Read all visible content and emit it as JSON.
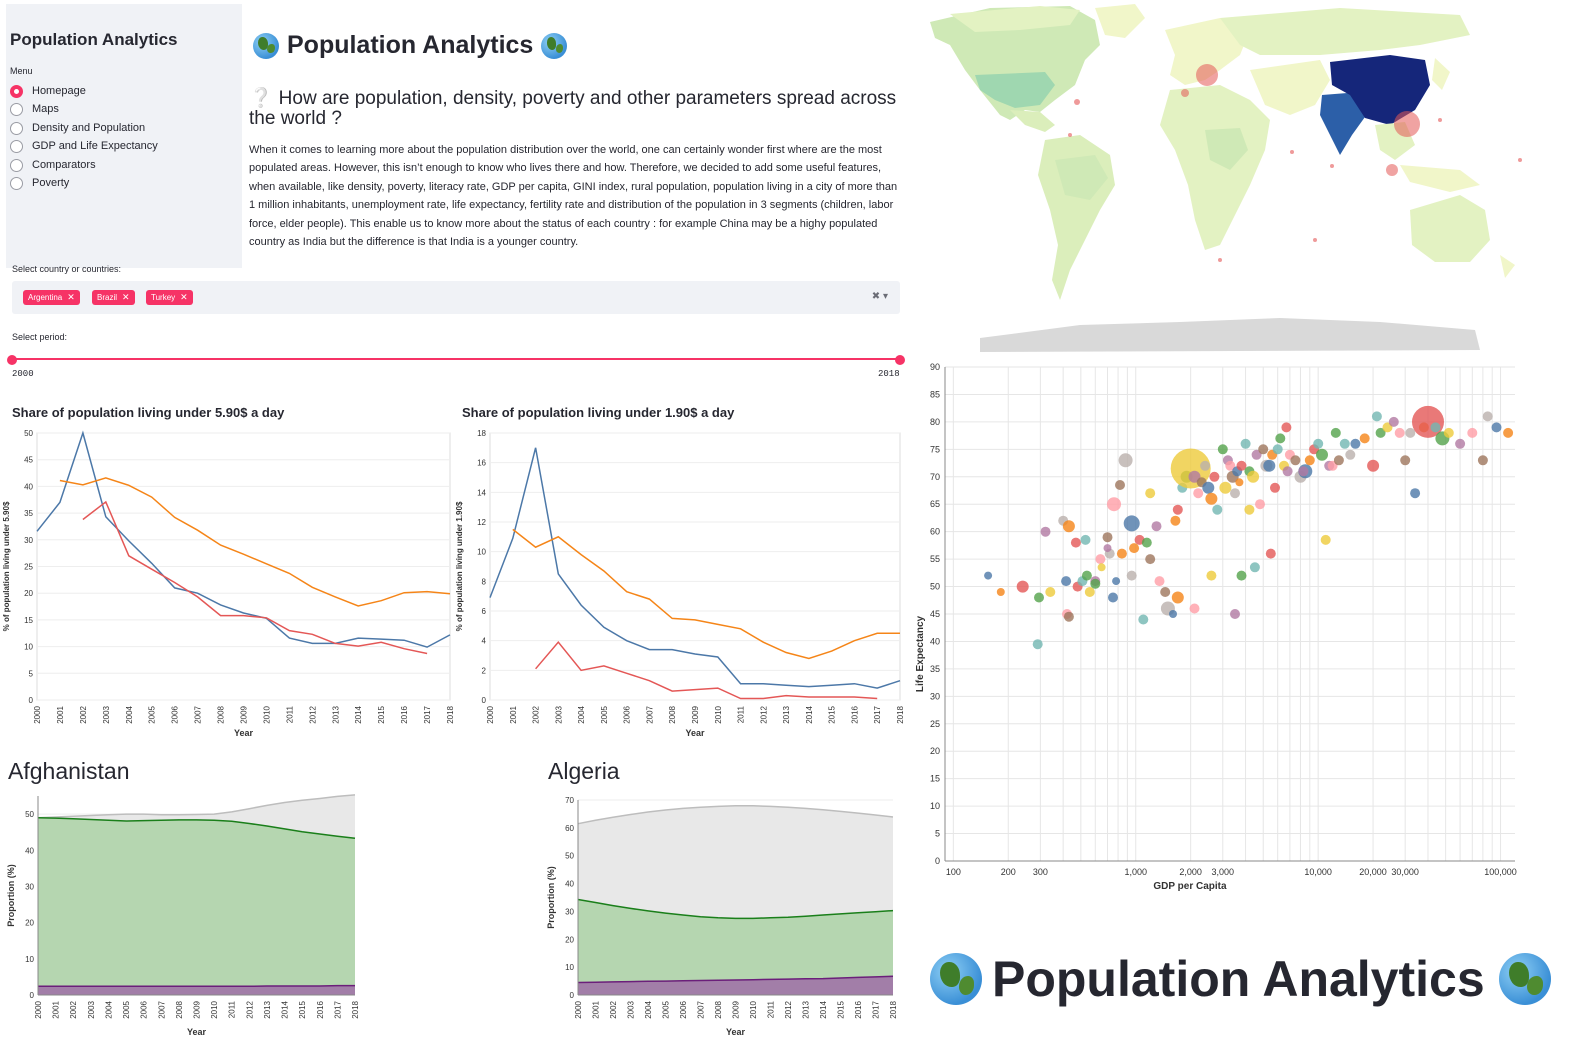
{
  "sidebar": {
    "title": "Population Analytics",
    "menu_label": "Menu",
    "items": [
      {
        "label": "Homepage",
        "selected": true
      },
      {
        "label": "Maps",
        "selected": false
      },
      {
        "label": "Density and Population",
        "selected": false
      },
      {
        "label": "GDP and Life Expectancy",
        "selected": false
      },
      {
        "label": "Comparators",
        "selected": false
      },
      {
        "label": "Poverty",
        "selected": false
      }
    ]
  },
  "header": {
    "title": "Population Analytics",
    "question": "How are population, density, poverty and other parameters spread across the world ?",
    "question_mark": "❔",
    "intro": "When it comes to learning more about the population distribution over the world, one can certainly wonder first where are the most populated areas. However, this isn’t enough to know who lives there and how. Therefore, we decided to add some useful features, when available, like density, poverty, literacy rate, GDP per capita, GINI index, rural population, population living in a city of more than 1 million inhabitants, unemployment rate, life expectancy, fertility rate and distribution of the population in 3 segments (children, labor force, elder people). This enable us to know more about the status of each country : for example China may be a highy populated country as India but the difference is that India is a younger country."
  },
  "country_select": {
    "label": "Select country or countries:",
    "selected": [
      "Argentina",
      "Brazil",
      "Turkey"
    ],
    "remove_glyph": "✕",
    "clear_glyph": "✖",
    "dropdown_glyph": "▾"
  },
  "period": {
    "label": "Select period:",
    "min": "2000",
    "max": "2018"
  },
  "colors": {
    "accent": "#f63366",
    "argentina": "#4c78a8",
    "brazil": "#f58518",
    "turkey": "#e45756",
    "young": "#b5d6b0",
    "young_line": "#1a7f1a",
    "old": "#a27ea8",
    "old_line": "#6b1f7a",
    "total": "#e8e8e8",
    "total_line": "#bdbdbd"
  },
  "chart_data": [
    {
      "type": "line",
      "title": "Share of population living under 5.90$ a day",
      "xlabel": "Year",
      "ylabel": "% of population living under 5.90$",
      "ylim": [
        0,
        50
      ],
      "x": [
        "2000",
        "2001",
        "2002",
        "2003",
        "2004",
        "2005",
        "2006",
        "2007",
        "2008",
        "2009",
        "2010",
        "2011",
        "2012",
        "2013",
        "2014",
        "2015",
        "2016",
        "2017",
        "2018"
      ],
      "series": [
        {
          "key": "argentina",
          "values": [
            31.6,
            37,
            50,
            34.3,
            29.8,
            25.6,
            21,
            20,
            17.8,
            16.3,
            15.3,
            11.6,
            10.6,
            10.6,
            11.6,
            11.4,
            11.2,
            9.9,
            12.2
          ]
        },
        {
          "key": "brazil",
          "values": [
            null,
            41.1,
            40.3,
            41.6,
            40.2,
            38,
            34.2,
            31.8,
            29,
            27.3,
            25.5,
            23.7,
            21.1,
            19.3,
            17.6,
            18.6,
            20.1,
            20.3,
            19.9
          ]
        },
        {
          "key": "turkey",
          "values": [
            null,
            null,
            33.8,
            37.1,
            27,
            24.5,
            22,
            19.3,
            15.8,
            15.8,
            15.4,
            13,
            12.3,
            10.6,
            10.1,
            10.8,
            9.6,
            8.7,
            null
          ]
        }
      ]
    },
    {
      "type": "line",
      "title": "Share of population living under 1.90$ a day",
      "xlabel": "Year",
      "ylabel": "% of population living under 1.90$",
      "ylim": [
        0,
        18
      ],
      "x": [
        "2000",
        "2001",
        "2002",
        "2003",
        "2004",
        "2005",
        "2006",
        "2007",
        "2008",
        "2009",
        "2010",
        "2011",
        "2012",
        "2013",
        "2014",
        "2015",
        "2016",
        "2017",
        "2018"
      ],
      "series": [
        {
          "key": "argentina",
          "values": [
            6.9,
            10.9,
            17,
            8.5,
            6.4,
            4.9,
            4,
            3.4,
            3.4,
            3.1,
            2.9,
            1.1,
            1.1,
            1,
            0.9,
            1,
            1.1,
            0.8,
            1.3
          ]
        },
        {
          "key": "brazil",
          "values": [
            null,
            11.5,
            10.3,
            11,
            9.8,
            8.7,
            7.3,
            6.8,
            5.5,
            5.4,
            5.1,
            4.8,
            3.9,
            3.2,
            2.8,
            3.3,
            4,
            4.5,
            4.5
          ]
        },
        {
          "key": "turkey",
          "values": [
            null,
            null,
            2.1,
            3.9,
            2,
            2.3,
            1.8,
            1.3,
            0.6,
            0.7,
            0.8,
            0.1,
            0.1,
            0.3,
            0.2,
            0.2,
            0.2,
            0.1,
            null
          ]
        }
      ]
    },
    {
      "type": "area",
      "title": "Afghanistan",
      "xlabel": "Year",
      "ylabel": "Proportion (%)",
      "ylim": [
        0,
        55
      ],
      "x": [
        "2000",
        "2001",
        "2002",
        "2003",
        "2004",
        "2005",
        "2006",
        "2007",
        "2008",
        "2009",
        "2010",
        "2011",
        "2012",
        "2013",
        "2014",
        "2015",
        "2016",
        "2017",
        "2018"
      ],
      "series": [
        {
          "key": "total",
          "values": [
            49,
            49.2,
            49.4,
            49.6,
            49.8,
            50,
            50,
            49.8,
            49.8,
            49.9,
            50,
            50.6,
            51.5,
            52.4,
            53.2,
            53.8,
            54.3,
            54.9,
            55.3
          ]
        },
        {
          "key": "young",
          "values": [
            49,
            48.9,
            48.7,
            48.5,
            48.3,
            48.1,
            48.2,
            48.3,
            48.4,
            48.4,
            48.3,
            48,
            47.4,
            46.7,
            45.9,
            45.1,
            44.5,
            43.9,
            43.3
          ]
        },
        {
          "key": "old",
          "values": [
            2.4,
            2.4,
            2.4,
            2.4,
            2.4,
            2.4,
            2.4,
            2.4,
            2.4,
            2.4,
            2.4,
            2.4,
            2.4,
            2.5,
            2.5,
            2.5,
            2.5,
            2.6,
            2.6
          ]
        }
      ]
    },
    {
      "type": "area",
      "title": "Algeria",
      "xlabel": "Year",
      "ylabel": "Proportion (%)",
      "ylim": [
        0,
        70
      ],
      "x": [
        "2000",
        "2001",
        "2002",
        "2003",
        "2004",
        "2005",
        "2006",
        "2007",
        "2008",
        "2009",
        "2010",
        "2011",
        "2012",
        "2013",
        "2014",
        "2015",
        "2016",
        "2017",
        "2018"
      ],
      "series": [
        {
          "key": "total",
          "values": [
            61.5,
            62.7,
            63.8,
            64.8,
            65.7,
            66.4,
            67,
            67.4,
            67.7,
            67.9,
            67.9,
            67.7,
            67.4,
            67,
            66.5,
            65.9,
            65.3,
            64.6,
            63.9
          ]
        },
        {
          "key": "young",
          "values": [
            34.3,
            33.2,
            32.1,
            31.1,
            30.2,
            29.4,
            28.7,
            28.1,
            27.7,
            27.5,
            27.5,
            27.7,
            27.9,
            28.3,
            28.7,
            29.1,
            29.5,
            29.9,
            30.3
          ]
        },
        {
          "key": "old",
          "values": [
            4.5,
            4.6,
            4.7,
            4.8,
            4.9,
            5,
            5.1,
            5.2,
            5.3,
            5.4,
            5.5,
            5.6,
            5.7,
            5.8,
            5.9,
            6.1,
            6.3,
            6.5,
            6.7
          ]
        }
      ]
    },
    {
      "type": "scatter",
      "xlabel": "GDP per Capita",
      "ylabel": "Life Expectancy",
      "xscale": "log",
      "xlim": [
        90,
        120000
      ],
      "ylim": [
        0,
        90
      ],
      "xticks": [
        100,
        200,
        300,
        1000,
        2000,
        3000,
        10000,
        20000,
        30000,
        100000
      ],
      "xtick_labels": [
        "100",
        "200",
        "300",
        "1,000",
        "2,000",
        "3,000",
        "10,000",
        "20,000",
        "30,000",
        "100,000"
      ],
      "yticks": [
        0,
        5,
        10,
        15,
        20,
        25,
        30,
        35,
        40,
        45,
        50,
        55,
        60,
        65,
        70,
        75,
        80,
        85,
        90
      ],
      "points": [
        [
          155,
          52,
          4
        ],
        [
          182,
          49,
          4
        ],
        [
          240,
          50,
          6
        ],
        [
          290,
          39.5,
          5
        ],
        [
          295,
          48,
          5
        ],
        [
          340,
          49,
          5
        ],
        [
          320,
          60,
          5
        ],
        [
          420,
          45,
          5
        ],
        [
          430,
          44.5,
          5
        ],
        [
          400,
          62,
          5
        ],
        [
          415,
          51,
          5
        ],
        [
          430,
          61,
          6
        ],
        [
          480,
          50,
          5
        ],
        [
          510,
          51,
          5
        ],
        [
          540,
          52,
          5
        ],
        [
          560,
          49,
          5
        ],
        [
          600,
          51,
          5
        ],
        [
          640,
          55,
          5
        ],
        [
          700,
          59,
          5
        ],
        [
          720,
          56,
          5
        ],
        [
          780,
          51,
          4
        ],
        [
          840,
          56,
          5
        ],
        [
          470,
          58,
          5
        ],
        [
          530,
          58.5,
          5
        ],
        [
          600,
          50.5,
          5
        ],
        [
          650,
          53.5,
          4
        ],
        [
          700,
          57,
          4
        ],
        [
          760,
          65,
          7
        ],
        [
          820,
          68.5,
          5
        ],
        [
          880,
          73,
          7
        ],
        [
          950,
          61.5,
          8
        ],
        [
          980,
          57,
          5
        ],
        [
          1050,
          58.5,
          5
        ],
        [
          1100,
          44,
          5
        ],
        [
          1150,
          58,
          5
        ],
        [
          1200,
          67,
          5
        ],
        [
          1300,
          61,
          5
        ],
        [
          1350,
          51,
          5
        ],
        [
          1450,
          49,
          5
        ],
        [
          1500,
          46,
          7
        ],
        [
          1600,
          45,
          4
        ],
        [
          1650,
          62,
          5
        ],
        [
          1700,
          64,
          5
        ],
        [
          1800,
          68,
          5
        ],
        [
          1900,
          70,
          6
        ],
        [
          2000,
          71.5,
          20
        ],
        [
          2100,
          70,
          6
        ],
        [
          2200,
          67,
          5
        ],
        [
          2300,
          69,
          5
        ],
        [
          2400,
          72,
          5
        ],
        [
          2500,
          68,
          6
        ],
        [
          2600,
          66,
          6
        ],
        [
          2700,
          70,
          5
        ],
        [
          2800,
          64,
          5
        ],
        [
          3000,
          75,
          5
        ],
        [
          3100,
          68,
          6
        ],
        [
          3200,
          73,
          5
        ],
        [
          3300,
          72,
          5
        ],
        [
          3400,
          70,
          6
        ],
        [
          3500,
          67,
          5
        ],
        [
          3600,
          71,
          5
        ],
        [
          3700,
          69,
          4
        ],
        [
          3800,
          72,
          5
        ],
        [
          4000,
          76,
          5
        ],
        [
          4200,
          71,
          5
        ],
        [
          4400,
          70,
          6
        ],
        [
          4600,
          74,
          5
        ],
        [
          4800,
          65,
          5
        ],
        [
          5000,
          75,
          5
        ],
        [
          5200,
          72,
          6
        ],
        [
          5400,
          72,
          6
        ],
        [
          5600,
          74,
          5
        ],
        [
          5800,
          68,
          5
        ],
        [
          6000,
          75,
          5
        ],
        [
          6200,
          77,
          5
        ],
        [
          6500,
          72,
          5
        ],
        [
          6800,
          71,
          5
        ],
        [
          7000,
          74,
          5
        ],
        [
          7500,
          73,
          5
        ],
        [
          8000,
          70,
          6
        ],
        [
          8500,
          71,
          7
        ],
        [
          9000,
          73,
          5
        ],
        [
          9500,
          75,
          5
        ],
        [
          10000,
          76,
          5
        ],
        [
          10500,
          74,
          6
        ],
        [
          11000,
          58.5,
          5
        ],
        [
          11500,
          72,
          5
        ],
        [
          12000,
          72,
          5
        ],
        [
          13000,
          73,
          5
        ],
        [
          15000,
          74,
          5
        ],
        [
          16000,
          76,
          5
        ],
        [
          18000,
          77,
          5
        ],
        [
          20000,
          72,
          6
        ],
        [
          21000,
          81,
          5
        ],
        [
          22000,
          78,
          5
        ],
        [
          24000,
          79,
          5
        ],
        [
          26000,
          80,
          5
        ],
        [
          28000,
          78,
          5
        ],
        [
          30000,
          73,
          5
        ],
        [
          32000,
          78,
          5
        ],
        [
          34000,
          67,
          5
        ],
        [
          38000,
          79,
          5
        ],
        [
          40000,
          80,
          16
        ],
        [
          44000,
          79,
          5
        ],
        [
          48000,
          77,
          7
        ],
        [
          52000,
          78,
          5
        ],
        [
          60000,
          76,
          5
        ],
        [
          70000,
          78,
          5
        ],
        [
          80000,
          73,
          5
        ],
        [
          85000,
          81,
          5
        ],
        [
          95000,
          79,
          5
        ],
        [
          110000,
          78,
          5
        ],
        [
          5500,
          56,
          5
        ],
        [
          4500,
          53.5,
          5
        ],
        [
          3800,
          52,
          5
        ],
        [
          2600,
          52,
          5
        ],
        [
          3500,
          45,
          5
        ],
        [
          2100,
          46,
          5
        ],
        [
          1200,
          55,
          5
        ],
        [
          950,
          52,
          5
        ],
        [
          750,
          48,
          5
        ],
        [
          1700,
          48,
          6
        ],
        [
          6700,
          79,
          5
        ],
        [
          14000,
          76,
          5
        ],
        [
          12500,
          78,
          5
        ],
        [
          4200,
          64,
          5
        ],
        [
          8300,
          71,
          5
        ]
      ]
    }
  ],
  "map": {
    "colors": {
      "low": "#f1f6c9",
      "mid": "#cfe9b6",
      "high_india": "#2c5fa8",
      "high_china": "#15267a",
      "antarctica": "#d9d9d9"
    }
  },
  "banner": {
    "title": "Population Analytics"
  }
}
